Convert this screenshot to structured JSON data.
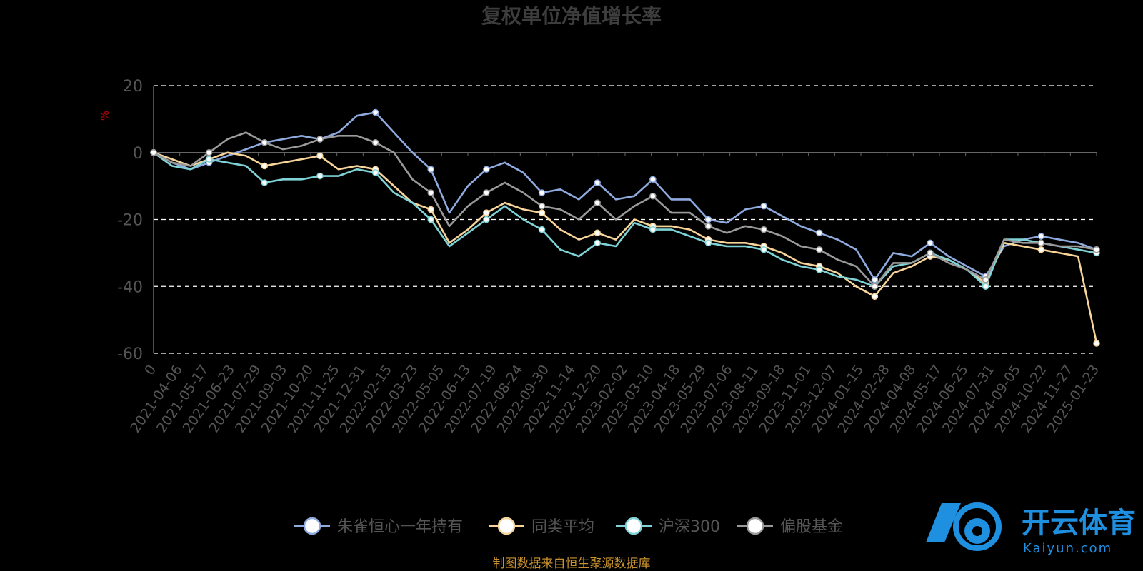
{
  "chart_data": {
    "type": "line",
    "title": "复权单位净值增长率",
    "ylabel": "%",
    "ylim": [
      -60,
      20
    ],
    "yticks": [
      20,
      0,
      -20,
      -40,
      -60
    ],
    "grid": "dashed horizontal",
    "legend_position": "bottom",
    "xticks": [
      "0",
      "2021-04-06",
      "2021-05-17",
      "2021-06-23",
      "2021-07-29",
      "2021-09-03",
      "2021-10-20",
      "2021-11-25",
      "2021-12-31",
      "2022-02-15",
      "2022-03-23",
      "2022-05-05",
      "2022-06-13",
      "2022-07-19",
      "2022-08-24",
      "2022-09-30",
      "2022-11-14",
      "2022-12-20",
      "2023-02-02",
      "2023-03-10",
      "2023-04-18",
      "2023-05-29",
      "2023-07-06",
      "2023-08-11",
      "2023-09-18",
      "2023-11-01",
      "2023-12-07",
      "2024-01-15",
      "2024-02-28",
      "2024-04-08",
      "2024-05-17",
      "2024-06-25",
      "2024-07-31",
      "2024-09-05",
      "2024-10-22",
      "2024-11-27",
      "2025-01-23"
    ],
    "series": [
      {
        "name": "朱雀恒心一年持有",
        "color": "#8eaadf",
        "values": [
          0,
          -3,
          -5,
          -3,
          -1,
          1,
          3,
          4,
          5,
          4,
          6,
          11,
          12,
          6,
          0,
          -5,
          -18,
          -10,
          -5,
          -3,
          -6,
          -12,
          -11,
          -14,
          -9,
          -14,
          -13,
          -8,
          -14,
          -14,
          -20,
          -21,
          -17,
          -16,
          -19,
          -22,
          -24,
          -26,
          -29,
          -38,
          -30,
          -31,
          -27,
          -31,
          -34,
          -37,
          -28,
          -26,
          -25,
          -26,
          -27,
          -29
        ]
      },
      {
        "name": "同类平均",
        "color": "#f7d59a",
        "values": [
          0,
          -2,
          -4,
          -2,
          0,
          -1,
          -4,
          -3,
          -2,
          -1,
          -5,
          -4,
          -5,
          -10,
          -15,
          -17,
          -27,
          -23,
          -18,
          -15,
          -17,
          -18,
          -23,
          -26,
          -24,
          -26,
          -20,
          -22,
          -22,
          -23,
          -26,
          -27,
          -27,
          -28,
          -30,
          -33,
          -34,
          -36,
          -40,
          -43,
          -36,
          -34,
          -31,
          -32,
          -35,
          -39,
          -27,
          -28,
          -29,
          -30,
          -31,
          -57
        ]
      },
      {
        "name": "沪深300",
        "color": "#7fd3d6",
        "values": [
          0,
          -4,
          -5,
          -2,
          -3,
          -4,
          -9,
          -8,
          -8,
          -7,
          -7,
          -5,
          -6,
          -12,
          -15,
          -20,
          -28,
          -24,
          -20,
          -16,
          -20,
          -23,
          -29,
          -31,
          -27,
          -28,
          -21,
          -23,
          -23,
          -25,
          -27,
          -28,
          -28,
          -29,
          -32,
          -34,
          -35,
          -37,
          -38,
          -40,
          -34,
          -33,
          -30,
          -32,
          -35,
          -40,
          -26,
          -26,
          -27,
          -28,
          -29,
          -30
        ]
      },
      {
        "name": "偏股基金",
        "color": "#9a9a9a",
        "values": [
          0,
          -3,
          -4,
          0,
          4,
          6,
          3,
          1,
          2,
          4,
          5,
          5,
          3,
          0,
          -8,
          -12,
          -22,
          -16,
          -12,
          -9,
          -12,
          -16,
          -17,
          -20,
          -15,
          -20,
          -16,
          -13,
          -18,
          -18,
          -22,
          -24,
          -22,
          -23,
          -25,
          -28,
          -29,
          -32,
          -34,
          -40,
          -33,
          -33,
          -30,
          -33,
          -35,
          -38,
          -26,
          -27,
          -27,
          -28,
          -28,
          -29
        ]
      }
    ],
    "source": "制图数据来自恒生聚源数据库"
  },
  "watermark": {
    "cn": "开云体育",
    "en": "Kaiyun.com"
  }
}
